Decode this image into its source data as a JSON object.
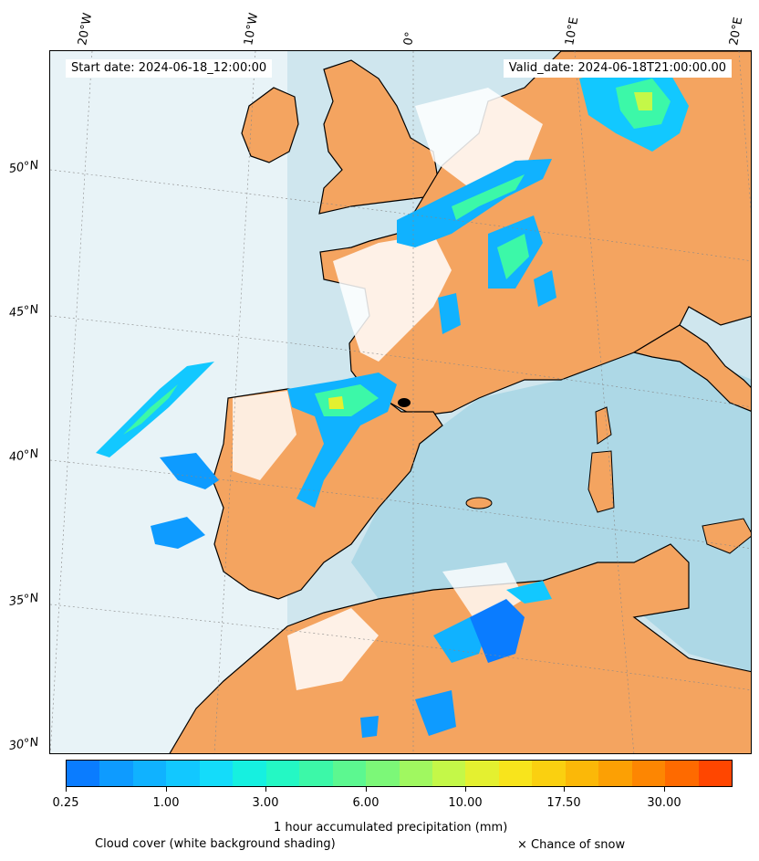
{
  "header": {
    "start_date": "Start date: 2024-06-18_12:00:00",
    "valid_date": "Valid_date: 2024-06-18T21:00:00.00"
  },
  "axes": {
    "lon_labels": [
      "20°W",
      "10°W",
      "0°",
      "10°E",
      "20°E"
    ],
    "lat_labels": [
      "50°N",
      "45°N",
      "40°N",
      "35°N",
      "30°N"
    ]
  },
  "colorbar": {
    "label": "1 hour accumulated precipitation (mm)",
    "ticks": [
      "0.25",
      "1.00",
      "3.00",
      "6.00",
      "10.00",
      "17.50",
      "30.00"
    ],
    "colors": [
      "#0a7cff",
      "#0e9bff",
      "#10b2ff",
      "#12c8ff",
      "#14dcfa",
      "#16f0e0",
      "#24f8c4",
      "#3cf8a8",
      "#5cf890",
      "#7cf878",
      "#a0f860",
      "#c4f848",
      "#e4f030",
      "#f8e41c",
      "#fad010",
      "#fbb808",
      "#fca004",
      "#fd8602",
      "#fe6a00",
      "#ff4600"
    ]
  },
  "legend": {
    "cloud": "Cloud cover (white background shading)",
    "snow": "× Chance of snow"
  },
  "colors": {
    "sea": "#add8e6",
    "land": "#f4a460",
    "cloud": "#ffffff",
    "precip_low": "#0a7cff",
    "precip_mid": "#3cf8a8",
    "precip_high": "#e4f030"
  }
}
